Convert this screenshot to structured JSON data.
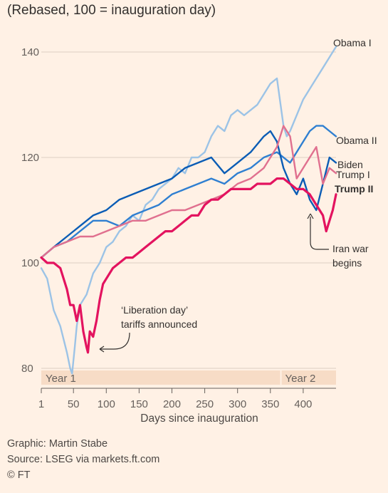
{
  "subtitle": "(Rebased, 100 = inauguration day)",
  "footer": {
    "graphic": "Graphic: Martin Stabe",
    "source": "Source:  LSEG via markets.ft.com",
    "copyright": "© FT"
  },
  "colors": {
    "background": "#fff1e5",
    "obama_i": "#9cc3e6",
    "obama_ii": "#2f7fd1",
    "biden": "#0a5cb5",
    "trump_i": "#e0708f",
    "trump_ii": "#e3135f",
    "year_band": "#f7dcc6",
    "grid": "#e3d5c9"
  },
  "chart_data": {
    "type": "line",
    "xlabel": "Days since inauguration",
    "ylabel": "",
    "xlim": [
      1,
      450
    ],
    "ylim": [
      80,
      143
    ],
    "x_ticks": [
      1,
      50,
      100,
      150,
      200,
      250,
      300,
      350,
      400
    ],
    "y_ticks": [
      80,
      100,
      120,
      140
    ],
    "grid": "horizontal",
    "period_bands": [
      {
        "label": "Year 1",
        "start": 1,
        "end": 365
      },
      {
        "label": "Year 2",
        "start": 366,
        "end": 450
      }
    ],
    "series": [
      {
        "name": "Obama I",
        "color_key": "obama_i",
        "x": [
          1,
          10,
          20,
          30,
          40,
          45,
          48,
          52,
          55,
          60,
          70,
          80,
          90,
          100,
          110,
          120,
          130,
          140,
          150,
          160,
          170,
          180,
          190,
          200,
          210,
          220,
          230,
          240,
          250,
          260,
          270,
          280,
          290,
          300,
          310,
          320,
          330,
          340,
          350,
          360,
          370,
          375,
          380,
          390,
          400,
          410,
          420,
          430,
          440,
          450
        ],
        "values": [
          99,
          97,
          91,
          88,
          83,
          80,
          79,
          84,
          88,
          92,
          94,
          98,
          100,
          103,
          104,
          106,
          107,
          109,
          108,
          111,
          112,
          114,
          115,
          116,
          118,
          117,
          120,
          120,
          121,
          124,
          126,
          125,
          128,
          129,
          128,
          129,
          130,
          132,
          134,
          135,
          126,
          124,
          125,
          128,
          131,
          133,
          135,
          137,
          139,
          141
        ]
      },
      {
        "name": "Obama II",
        "color_key": "obama_ii",
        "x": [
          1,
          20,
          40,
          60,
          80,
          100,
          120,
          140,
          160,
          180,
          200,
          220,
          240,
          260,
          280,
          300,
          320,
          340,
          360,
          380,
          400,
          410,
          420,
          430,
          440,
          450
        ],
        "values": [
          101,
          103,
          104,
          106,
          108,
          108,
          107,
          109,
          110,
          111,
          113,
          114,
          115,
          116,
          115,
          117,
          118,
          120,
          121,
          119,
          123,
          125,
          126,
          126,
          125,
          124
        ]
      },
      {
        "name": "Biden",
        "color_key": "biden",
        "x": [
          1,
          20,
          40,
          60,
          80,
          100,
          120,
          140,
          160,
          180,
          200,
          220,
          240,
          260,
          280,
          300,
          320,
          340,
          350,
          360,
          370,
          380,
          390,
          400,
          410,
          420,
          430,
          440,
          450
        ],
        "values": [
          101,
          103,
          105,
          107,
          109,
          110,
          112,
          113,
          114,
          115,
          116,
          118,
          119,
          120,
          117,
          119,
          121,
          124,
          125,
          123,
          118,
          115,
          113,
          116,
          112,
          110,
          115,
          120,
          119
        ]
      },
      {
        "name": "Trump I",
        "color_key": "trump_i",
        "x": [
          1,
          20,
          40,
          60,
          80,
          100,
          120,
          140,
          160,
          180,
          200,
          220,
          240,
          260,
          280,
          300,
          320,
          340,
          350,
          360,
          370,
          380,
          390,
          400,
          410,
          420,
          430,
          440,
          450
        ],
        "values": [
          101,
          103,
          104,
          105,
          105,
          106,
          107,
          108,
          108,
          109,
          110,
          110,
          111,
          112,
          113,
          115,
          116,
          118,
          120,
          122,
          126,
          124,
          116,
          118,
          120,
          122,
          115,
          118,
          117
        ]
      },
      {
        "name": "Trump II",
        "color_key": "trump_ii",
        "x": [
          1,
          10,
          20,
          30,
          40,
          45,
          50,
          55,
          60,
          65,
          70,
          72,
          75,
          80,
          85,
          90,
          95,
          100,
          110,
          120,
          130,
          140,
          150,
          160,
          170,
          180,
          190,
          200,
          210,
          220,
          230,
          240,
          250,
          260,
          270,
          280,
          290,
          300,
          310,
          320,
          330,
          340,
          350,
          360,
          370,
          380,
          390,
          400,
          410,
          420,
          430,
          435,
          440,
          445,
          450
        ],
        "values": [
          101,
          100,
          100,
          99,
          95,
          92,
          92,
          89,
          92,
          87,
          84,
          83,
          87,
          86,
          89,
          93,
          96,
          97,
          99,
          100,
          101,
          101,
          102,
          103,
          104,
          105,
          106,
          106,
          107,
          108,
          109,
          109,
          111,
          112,
          112,
          113,
          114,
          114,
          114,
          114,
          115,
          115,
          115,
          116,
          116,
          115,
          114,
          114,
          113,
          111,
          109,
          106,
          108,
          110,
          113
        ]
      }
    ],
    "series_labels": [
      "Obama I",
      "Obama II",
      "Biden",
      "Trump I",
      "Trump II"
    ],
    "annotations": [
      {
        "id": "liberation",
        "lines": [
          "‘Liberation day’",
          "tariffs announced"
        ],
        "x": 75,
        "y": 83
      },
      {
        "id": "iran",
        "lines": [
          "Iran war",
          "begins"
        ],
        "x": 410,
        "y": 110
      }
    ]
  }
}
